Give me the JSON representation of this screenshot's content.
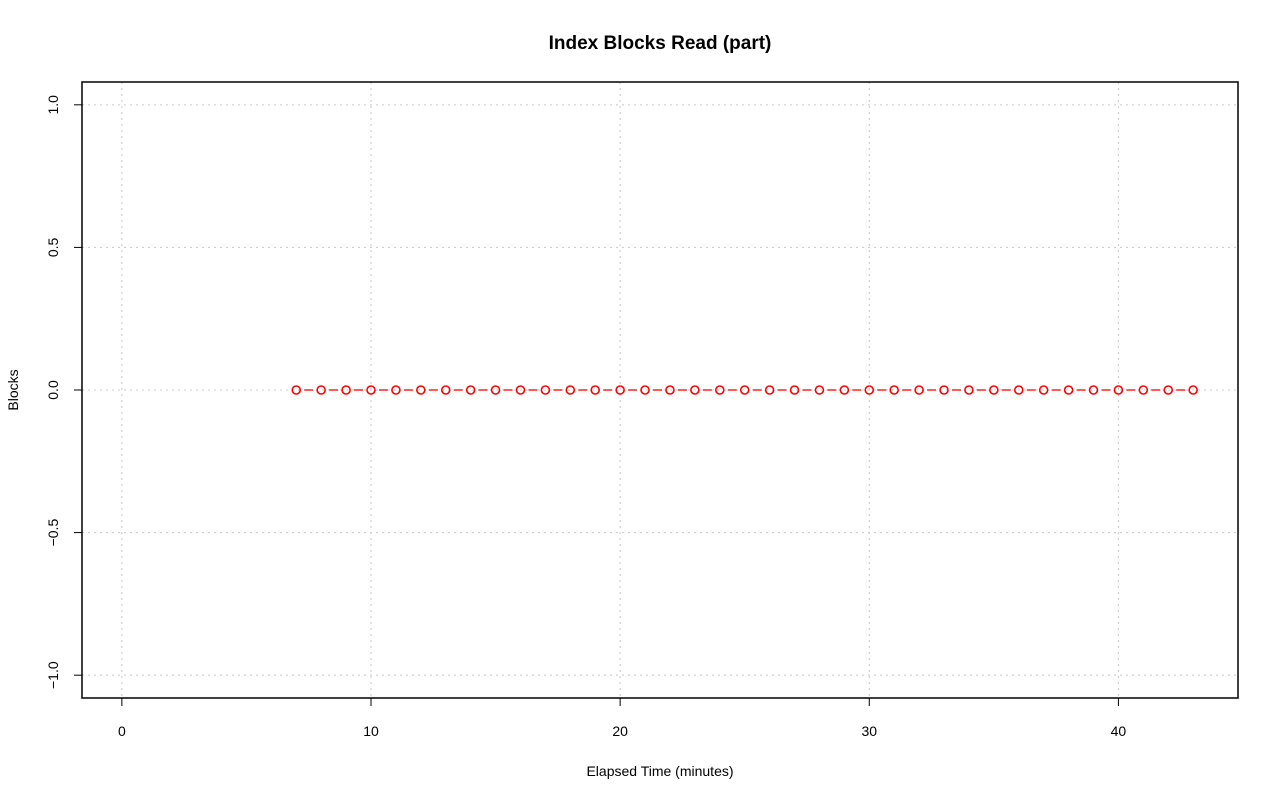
{
  "chart_data": {
    "type": "line",
    "title": "Index Blocks Read (part)",
    "xlabel": "Elapsed Time (minutes)",
    "ylabel": "Blocks",
    "xlim": [
      -1.6,
      44.8
    ],
    "ylim": [
      -1.08,
      1.08
    ],
    "xticks": [
      0,
      10,
      20,
      30,
      40
    ],
    "yticks": [
      -1.0,
      -0.5,
      0.0,
      0.5,
      1.0
    ],
    "ytick_labels": [
      "−1.0",
      "−0.5",
      "0.0",
      "0.5",
      "1.0"
    ],
    "grid": true,
    "series": [
      {
        "color": "#ff0000",
        "marker": "open-circle",
        "line_style": "dashed",
        "x": [
          7,
          8,
          9,
          10,
          11,
          12,
          13,
          14,
          15,
          16,
          17,
          18,
          19,
          20,
          21,
          22,
          23,
          24,
          25,
          26,
          27,
          28,
          29,
          30,
          31,
          32,
          33,
          34,
          35,
          36,
          37,
          38,
          39,
          40,
          41,
          42,
          43
        ],
        "y": [
          0,
          0,
          0,
          0,
          0,
          0,
          0,
          0,
          0,
          0,
          0,
          0,
          0,
          0,
          0,
          0,
          0,
          0,
          0,
          0,
          0,
          0,
          0,
          0,
          0,
          0,
          0,
          0,
          0,
          0,
          0,
          0,
          0,
          0,
          0,
          0,
          0
        ]
      }
    ]
  }
}
